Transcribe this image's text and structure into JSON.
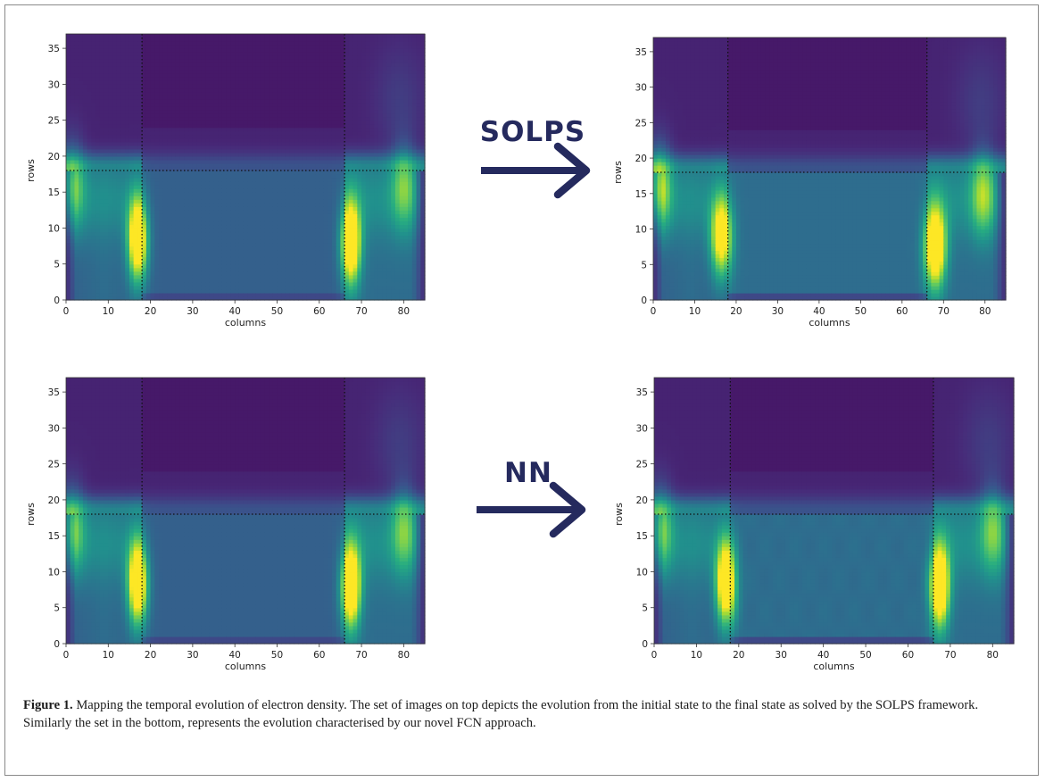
{
  "figure": {
    "caption_label": "Figure 1.",
    "caption_text": " Mapping the temporal evolution of electron density. The set of images on top depicts the evolution from the initial state to the final state as solved by the SOLPS framework. Similarly the set in the bottom, represents the evolution characterised by our novel FCN approach."
  },
  "arrows": [
    {
      "label": "SOLPS",
      "color": "#252a5e"
    },
    {
      "label": "NN",
      "color": "#252a5e"
    }
  ],
  "chart_data": [
    {
      "type": "heatmap",
      "xlabel": "columns",
      "ylabel": "rows",
      "xlim": [
        0,
        85
      ],
      "ylim": [
        0,
        37
      ],
      "xticks": [
        0,
        10,
        20,
        30,
        40,
        50,
        60,
        70,
        80
      ],
      "yticks": [
        0,
        5,
        10,
        15,
        20,
        25,
        30,
        35
      ],
      "separators": {
        "vertical": [
          18,
          66
        ],
        "horizontal": 18
      },
      "variant": "initial",
      "colormap": "viridis"
    },
    {
      "type": "heatmap",
      "xlabel": "columns",
      "ylabel": "rows",
      "xlim": [
        0,
        85
      ],
      "ylim": [
        0,
        37
      ],
      "xticks": [
        0,
        10,
        20,
        30,
        40,
        50,
        60,
        70,
        80
      ],
      "yticks": [
        0,
        5,
        10,
        15,
        20,
        25,
        30,
        35
      ],
      "separators": {
        "vertical": [
          18,
          66
        ],
        "horizontal": 18
      },
      "variant": "final_solps",
      "colormap": "viridis"
    },
    {
      "type": "heatmap",
      "xlabel": "columns",
      "ylabel": "rows",
      "xlim": [
        0,
        85
      ],
      "ylim": [
        0,
        37
      ],
      "xticks": [
        0,
        10,
        20,
        30,
        40,
        50,
        60,
        70,
        80
      ],
      "yticks": [
        0,
        5,
        10,
        15,
        20,
        25,
        30,
        35
      ],
      "separators": {
        "vertical": [
          18,
          66
        ],
        "horizontal": 18
      },
      "variant": "initial",
      "colormap": "viridis"
    },
    {
      "type": "heatmap",
      "xlabel": "columns",
      "ylabel": "rows",
      "xlim": [
        0,
        85
      ],
      "ylim": [
        0,
        37
      ],
      "xticks": [
        0,
        10,
        20,
        30,
        40,
        50,
        60,
        70,
        80
      ],
      "yticks": [
        0,
        5,
        10,
        15,
        20,
        25,
        30,
        35
      ],
      "separators": {
        "vertical": [
          18,
          66
        ],
        "horizontal": 18
      },
      "variant": "final_nn",
      "colormap": "viridis"
    }
  ]
}
